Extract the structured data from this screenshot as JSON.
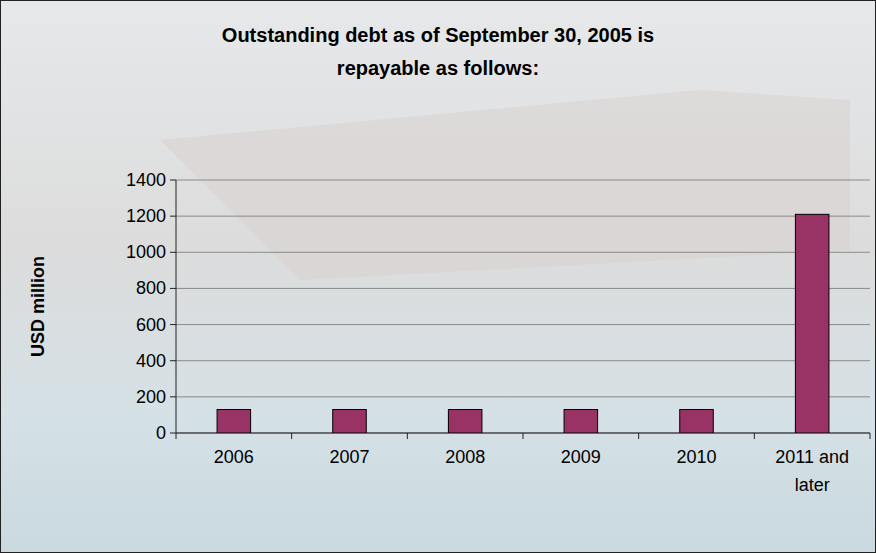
{
  "chart_data": {
    "type": "bar",
    "title": "Outstanding debt as of September 30, 2005 is repayable as follows:",
    "y_label": "USD million",
    "categories": [
      "2006",
      "2007",
      "2008",
      "2009",
      "2010",
      "2011 and later"
    ],
    "values": [
      130,
      130,
      130,
      130,
      130,
      1210
    ],
    "color": "#993366",
    "ylim": [
      0,
      1400
    ],
    "yticks": [
      0,
      200,
      400,
      600,
      800,
      1000,
      1200,
      1400
    ],
    "grid": true
  }
}
